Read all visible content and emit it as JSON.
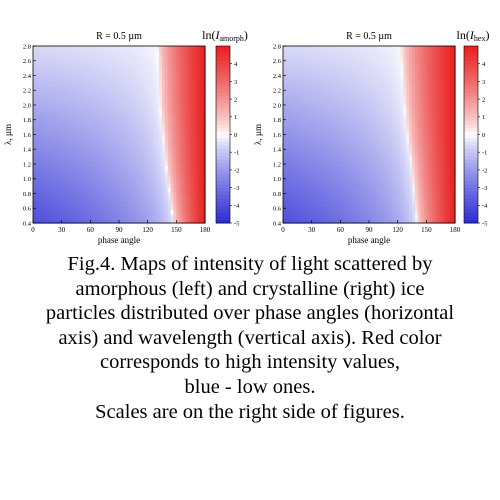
{
  "chart_data": [
    {
      "type": "heatmap",
      "panel": "left",
      "title": "R = 0.5 µm",
      "colorbar_label_prefix": "ln(",
      "colorbar_label_var": "I",
      "colorbar_label_sub": "amorph",
      "colorbar_label_suffix": ")",
      "xlabel": "phase angle",
      "ylabel": "λ, µm",
      "xlim": [
        0,
        180
      ],
      "ylim": [
        0.4,
        2.8
      ],
      "xticks": [
        0,
        30,
        60,
        90,
        120,
        150,
        180
      ],
      "yticks": [
        0.4,
        0.6,
        0.8,
        1.0,
        1.2,
        1.4,
        1.6,
        1.8,
        2.0,
        2.2,
        2.4,
        2.6,
        2.8
      ],
      "color_range": [
        -5,
        5
      ],
      "colorbar_ticks": [
        -5,
        -4,
        -3,
        -2,
        -1,
        0,
        1,
        2,
        3,
        4
      ],
      "zero_contour": [
        [
          0.4,
          147
        ],
        [
          0.8,
          143
        ],
        [
          1.2,
          139
        ],
        [
          1.6,
          136
        ],
        [
          2.0,
          133
        ],
        [
          2.4,
          132
        ],
        [
          2.8,
          130
        ]
      ],
      "colormap": {
        "low": "#2b2bd6",
        "mid": "#ffffff",
        "high": "#e81f1f"
      }
    },
    {
      "type": "heatmap",
      "panel": "right",
      "title": "R = 0.5 µm",
      "colorbar_label_prefix": "ln(",
      "colorbar_label_var": "I",
      "colorbar_label_sub": "hex",
      "colorbar_label_suffix": ")",
      "xlabel": "phase angle",
      "ylabel": "λ, µm",
      "xlim": [
        0,
        180
      ],
      "ylim": [
        0.4,
        2.8
      ],
      "xticks": [
        0,
        30,
        60,
        90,
        120,
        150,
        180
      ],
      "yticks": [
        0.4,
        0.6,
        0.8,
        1.0,
        1.2,
        1.4,
        1.6,
        1.8,
        2.0,
        2.2,
        2.4,
        2.6,
        2.8
      ],
      "color_range": [
        -5,
        5
      ],
      "colorbar_ticks": [
        -5,
        -4,
        -3,
        -2,
        -1,
        0,
        1,
        2,
        3,
        4
      ],
      "zero_contour": [
        [
          0.4,
          140
        ],
        [
          0.8,
          137
        ],
        [
          1.2,
          134
        ],
        [
          1.6,
          130
        ],
        [
          2.0,
          127
        ],
        [
          2.4,
          125
        ],
        [
          2.8,
          123
        ]
      ],
      "colormap": {
        "low": "#2b2bd6",
        "mid": "#ffffff",
        "high": "#e81f1f"
      }
    }
  ],
  "caption": {
    "lines": [
      "Fig.4. Maps of intensity of light scattered by",
      "amorphous (left) and crystalline (right) ice",
      "particles distributed over phase angles (horizontal",
      "axis) and wavelength (vertical axis). Red color",
      "corresponds to high intensity values,",
      "blue - low ones.",
      "Scales are on the right side of figures."
    ]
  }
}
